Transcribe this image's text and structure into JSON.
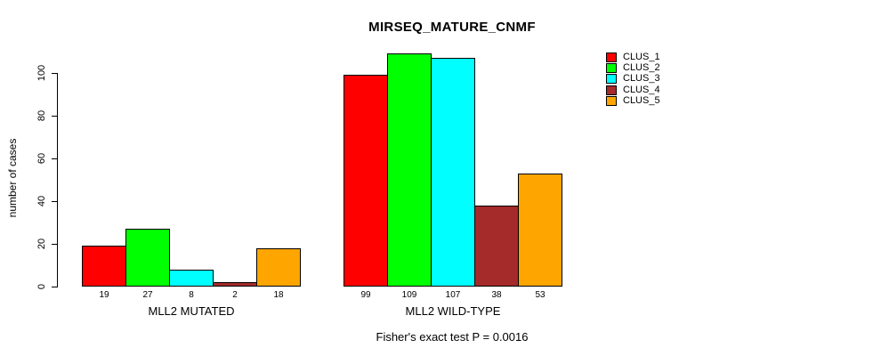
{
  "chart_data": {
    "type": "bar",
    "title": "MIRSEQ_MATURE_CNMF",
    "ylabel": "number of cases",
    "xlabel": "",
    "ylim": [
      0,
      109
    ],
    "yticks": [
      0,
      20,
      40,
      60,
      80,
      100
    ],
    "grid": false,
    "legend_position": "right",
    "categories": [
      "MLL2 MUTATED",
      "MLL2 WILD-TYPE"
    ],
    "series": [
      {
        "name": "CLUS_1",
        "color": "#FF0000",
        "values": [
          19,
          99
        ]
      },
      {
        "name": "CLUS_2",
        "color": "#00FF00",
        "values": [
          27,
          109
        ]
      },
      {
        "name": "CLUS_3",
        "color": "#00FFFF",
        "values": [
          8,
          107
        ]
      },
      {
        "name": "CLUS_4",
        "color": "#A52A2A",
        "values": [
          2,
          38
        ]
      },
      {
        "name": "CLUS_5",
        "color": "#FFA500",
        "values": [
          18,
          53
        ]
      }
    ],
    "bar_value_labels": true,
    "annotation": "Fisher's exact test P = 0.0016"
  }
}
